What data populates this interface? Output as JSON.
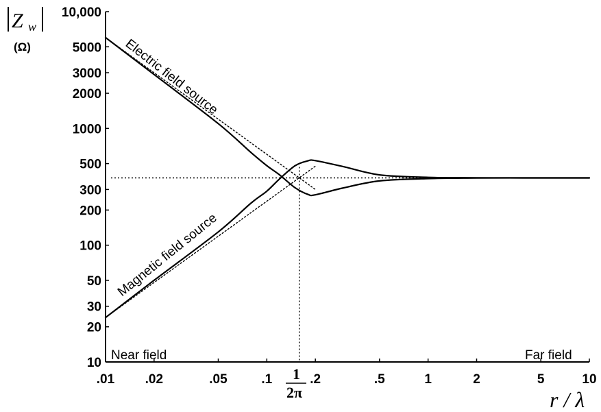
{
  "chart_data": {
    "type": "line",
    "x_scale": "log",
    "y_scale": "log",
    "xlim": [
      0.01,
      10
    ],
    "ylim": [
      10,
      10000
    ],
    "grid": false,
    "legend": "none",
    "ylabel": {
      "symbol": "Z",
      "subscript": "w",
      "unit": "(Ω)"
    },
    "xlabel": "r / λ",
    "x_tick_labels": [
      {
        "value": 0.01,
        "label": ".01"
      },
      {
        "value": 0.02,
        "label": ".02"
      },
      {
        "value": 0.05,
        "label": ".05"
      },
      {
        "value": 0.1,
        "label": ".1"
      },
      {
        "value": 0.2,
        "label": ".2"
      },
      {
        "value": 0.5,
        "label": ".5"
      },
      {
        "value": 1,
        "label": "1"
      },
      {
        "value": 2,
        "label": "2"
      },
      {
        "value": 5,
        "label": "5"
      },
      {
        "value": 10,
        "label": "10"
      }
    ],
    "special_x_tick": {
      "value": 0.159,
      "numerator": "1",
      "denominator": "2π"
    },
    "y_tick_labels": [
      {
        "value": 10,
        "label": "10"
      },
      {
        "value": 20,
        "label": "20"
      },
      {
        "value": 30,
        "label": "30"
      },
      {
        "value": 50,
        "label": "50"
      },
      {
        "value": 100,
        "label": "100"
      },
      {
        "value": 200,
        "label": "200"
      },
      {
        "value": 300,
        "label": "300"
      },
      {
        "value": 500,
        "label": "500"
      },
      {
        "value": 1000,
        "label": "1000"
      },
      {
        "value": 2000,
        "label": "2000"
      },
      {
        "value": 3000,
        "label": "3000"
      },
      {
        "value": 5000,
        "label": "5000"
      },
      {
        "value": 10000,
        "label": "10,000"
      }
    ],
    "annotations": {
      "near_field": "Near field",
      "far_field": "Far field"
    },
    "reference_level": 377,
    "series": [
      {
        "name": "Electric field source",
        "style": "solid",
        "points": [
          [
            0.01,
            6000
          ],
          [
            0.02,
            2900
          ],
          [
            0.05,
            1100
          ],
          [
            0.08,
            620
          ],
          [
            0.1,
            480
          ],
          [
            0.12,
            400
          ],
          [
            0.15,
            310
          ],
          [
            0.18,
            272
          ],
          [
            0.2,
            270
          ],
          [
            0.3,
            310
          ],
          [
            0.5,
            355
          ],
          [
            1,
            372
          ],
          [
            2,
            376
          ],
          [
            5,
            377
          ],
          [
            10,
            377
          ]
        ]
      },
      {
        "name": "Magnetic field source",
        "style": "solid",
        "points": [
          [
            0.01,
            24
          ],
          [
            0.02,
            50
          ],
          [
            0.05,
            130
          ],
          [
            0.08,
            230
          ],
          [
            0.1,
            290
          ],
          [
            0.12,
            370
          ],
          [
            0.15,
            480
          ],
          [
            0.18,
            528
          ],
          [
            0.2,
            530
          ],
          [
            0.3,
            470
          ],
          [
            0.5,
            400
          ],
          [
            1,
            381
          ],
          [
            2,
            378
          ],
          [
            5,
            377
          ],
          [
            10,
            377
          ]
        ]
      },
      {
        "name": "Electric field asymptote",
        "style": "dotted",
        "points": [
          [
            0.01,
            6000
          ],
          [
            0.2,
            300
          ]
        ]
      },
      {
        "name": "Magnetic field asymptote",
        "style": "dotted",
        "points": [
          [
            0.01,
            24
          ],
          [
            0.2,
            475
          ]
        ]
      }
    ]
  }
}
